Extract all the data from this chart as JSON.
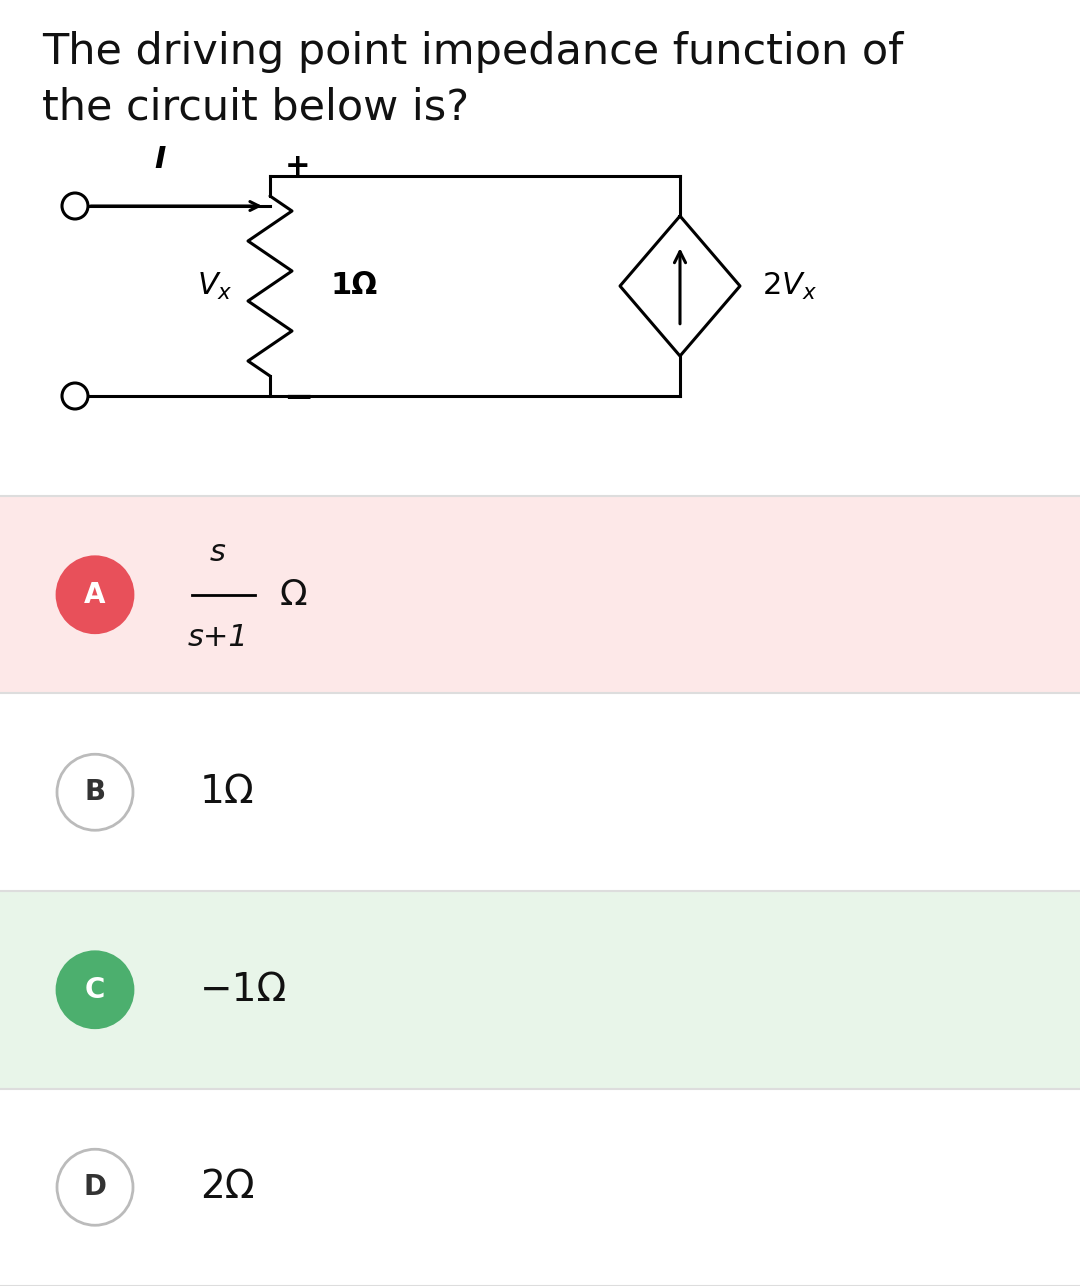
{
  "title_line1": "The driving point impedance function of",
  "title_line2": "the circuit below is?",
  "title_fontsize": 31,
  "bg_color": "#ffffff",
  "options": [
    {
      "label": "A",
      "text_top": "s",
      "text_bot": "s+1",
      "text_suffix": "Ω",
      "circle_color": "#e8505a",
      "circle_text_color": "#ffffff",
      "bg_color": "#fde8e8",
      "border_color": "#f5c6c6",
      "is_fraction": true
    },
    {
      "label": "B",
      "text": "1Ω",
      "circle_color": "#ffffff",
      "circle_text_color": "#333333",
      "bg_color": "#ffffff",
      "border_color": "#bbbbbb",
      "is_fraction": false
    },
    {
      "label": "C",
      "text": "−1Ω",
      "circle_color": "#4caf6e",
      "circle_text_color": "#ffffff",
      "bg_color": "#e8f5e9",
      "border_color": "#c8e6c9",
      "is_fraction": false
    },
    {
      "label": "D",
      "text": "2Ω",
      "circle_color": "#ffffff",
      "circle_text_color": "#333333",
      "bg_color": "#ffffff",
      "border_color": "#bbbbbb",
      "is_fraction": false
    }
  ]
}
